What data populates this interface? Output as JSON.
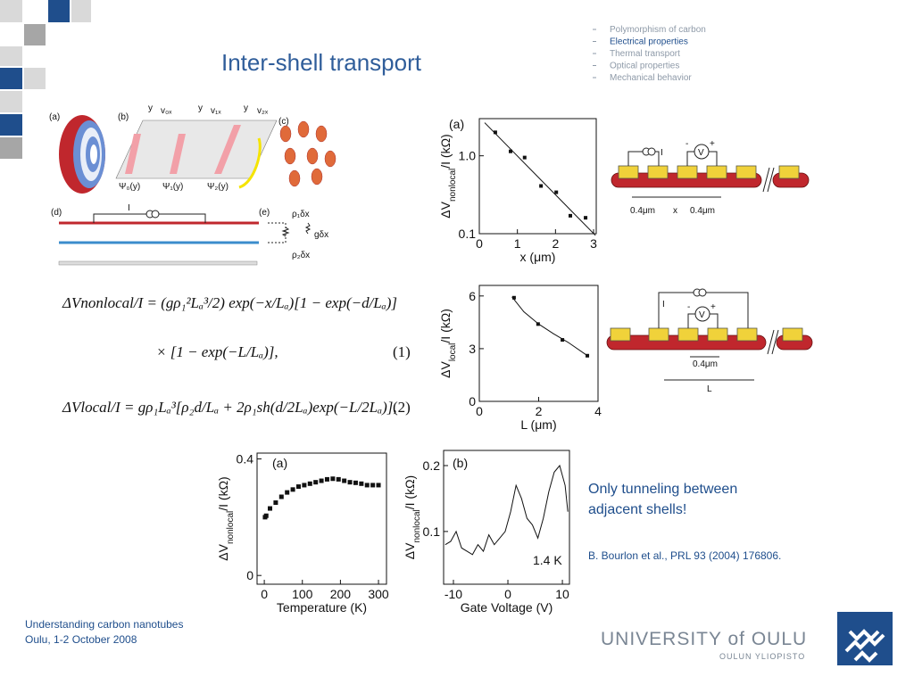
{
  "header": {
    "title": "Inter-shell transport"
  },
  "nav": {
    "items": [
      "Polymorphism of carbon",
      "Electrical properties",
      "Thermal transport",
      "Optical properties",
      "Mechanical behavior"
    ],
    "active": 1
  },
  "figure_top": {
    "panel_labels": [
      "(a)",
      "(b)",
      "(c)",
      "(d)",
      "(e)"
    ],
    "velocity_labels": [
      "v₀ₓ",
      "v₁ₓ",
      "v₂ₓ"
    ],
    "axis_y_labels": [
      "y",
      "y",
      "y"
    ],
    "wavefunction_labels": [
      "Ψ₀(y)",
      "Ψ₁(y)",
      "Ψ₂(y)"
    ],
    "current_label": "I",
    "resistor_labels": [
      "ρ₁δx",
      "gδx",
      "ρ₂δx"
    ]
  },
  "equations": {
    "eq1_line1": "ΔVnonlocal/I = (gρ₁²Lₐ³/2) exp(−x/Lₐ)[1 − exp(−d/Lₐ)]",
    "eq1_line2": "× [1 − exp(−L/Lₐ)],",
    "eq1_number": "(1)",
    "eq2": "ΔVlocal/I = gρ₁Lₐ³[ρ₂d/Lₐ + 2ρ₁sh(d/2Lₐ)exp(−L/2Lₐ)],",
    "eq2_number": "(2)"
  },
  "plots": [
    {
      "type": "scatter",
      "panel": "(a)",
      "xlabel": "x (μm)",
      "ylabel": [
        "ΔV",
        "nonlocal",
        "/I (kΩ)"
      ],
      "log_y": true,
      "xlim": [
        0,
        3.07
      ],
      "ylim": [
        0.1,
        3
      ],
      "xticks": [
        0,
        1,
        2,
        3
      ],
      "yticks": [
        0.1,
        {
          "value": 1,
          "label": "1.0"
        }
      ],
      "x": [
        0.42,
        0.82,
        1.19,
        1.62,
        2.02,
        2.39,
        2.79
      ],
      "y": [
        2.0,
        1.14,
        0.95,
        0.41,
        0.34,
        0.17,
        0.16
      ],
      "fit": {
        "x": [
          0.14,
          3.05
        ],
        "y": [
          2.66,
          0.095
        ]
      }
    },
    {
      "type": "scatter",
      "xlabel": "L (μm)",
      "ylabel": [
        "ΔV",
        "local",
        "/I (kΩ)"
      ],
      "log_y": false,
      "xlim": [
        0,
        4
      ],
      "ylim": [
        0,
        6.6
      ],
      "xticks": [
        0,
        2,
        4
      ],
      "yticks": [
        0,
        3,
        6
      ],
      "x": [
        1.17,
        1.98,
        2.8,
        3.64
      ],
      "y": [
        5.9,
        4.4,
        3.5,
        2.6
      ],
      "fit": {
        "x": [
          1.1,
          1.5,
          2,
          2.5,
          3,
          3.6
        ],
        "y": [
          5.95,
          5.1,
          4.4,
          3.85,
          3.35,
          2.65
        ]
      }
    },
    {
      "type": "scatter",
      "panel": "(a)",
      "xlabel": "Temperature (K)",
      "ylabel": [
        "ΔV",
        "nonlocal",
        "/I (kΩ)"
      ],
      "log_y": false,
      "xlim": [
        -19,
        321
      ],
      "ylim": [
        -0.03,
        0.42
      ],
      "xticks": [
        0,
        100,
        200,
        300
      ],
      "yticks": [
        0,
        0.4
      ],
      "x": [
        2,
        5,
        15,
        30,
        45,
        60,
        75,
        90,
        105,
        120,
        135,
        150,
        165,
        180,
        195,
        210,
        225,
        240,
        255,
        270,
        285,
        300
      ],
      "y": [
        0.2,
        0.205,
        0.23,
        0.25,
        0.27,
        0.285,
        0.295,
        0.305,
        0.31,
        0.315,
        0.32,
        0.325,
        0.33,
        0.332,
        0.33,
        0.325,
        0.32,
        0.318,
        0.315,
        0.31,
        0.31,
        0.31
      ]
    },
    {
      "type": "line",
      "panel": "(b)",
      "xlabel": "Gate Voltage (V)",
      "ylabel": [
        "ΔV",
        "nonlocal",
        "/I (kΩ)"
      ],
      "log_y": false,
      "xlim": [
        -11.8,
        11.3
      ],
      "ylim": [
        0.02,
        0.223
      ],
      "xticks": [
        -10,
        0,
        10
      ],
      "yticks": [
        0.1,
        0.2
      ],
      "annotation": "1.4 K",
      "x": [
        -11.5,
        -10.5,
        -9.5,
        -8.5,
        -7.5,
        -6.5,
        -5.5,
        -4.5,
        -3.5,
        -2.5,
        -1.5,
        -0.5,
        0.5,
        1.5,
        2.5,
        3.5,
        4.5,
        5.5,
        6.5,
        7.5,
        8.5,
        9.5,
        10.5,
        11
      ],
      "y": [
        0.08,
        0.085,
        0.1,
        0.075,
        0.07,
        0.065,
        0.08,
        0.07,
        0.095,
        0.08,
        0.09,
        0.1,
        0.13,
        0.17,
        0.15,
        0.12,
        0.11,
        0.09,
        0.12,
        0.16,
        0.19,
        0.2,
        0.17,
        0.13
      ]
    }
  ],
  "schematics": {
    "top": {
      "labels": [
        "I",
        "V",
        "-",
        "+",
        "0.4μm",
        "x",
        "0.4μm"
      ]
    },
    "bottom": {
      "labels": [
        "I",
        "V",
        "-",
        "+",
        "0.4μm",
        "L"
      ]
    }
  },
  "note": [
    "Only tunneling between",
    "adjacent shells!"
  ],
  "reference": "B. Bourlon et al., PRL 93 (2004) 176806.",
  "footer": [
    "Understanding carbon nanotubes",
    "Oulu, 1-2 October 2008"
  ],
  "logo": {
    "name": "UNIVERSITY of OULU",
    "subname": "OULUN YLIOPISTO"
  }
}
